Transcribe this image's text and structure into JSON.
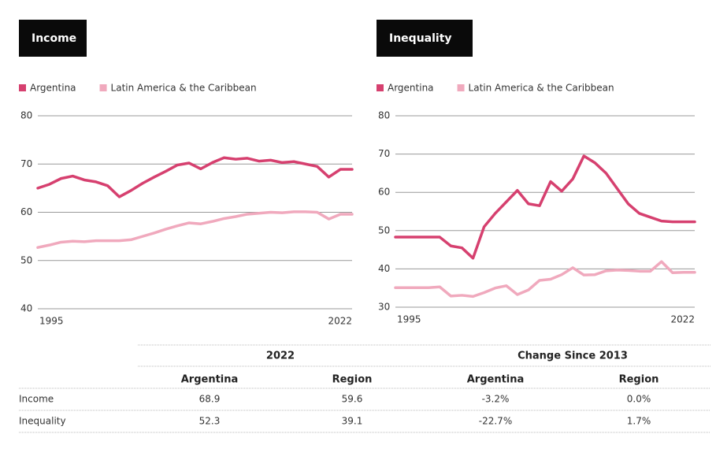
{
  "chart_data": [
    {
      "type": "line",
      "title": "Income",
      "x": [
        1995,
        1996,
        1997,
        1998,
        1999,
        2000,
        2001,
        2002,
        2003,
        2004,
        2005,
        2006,
        2007,
        2008,
        2009,
        2010,
        2011,
        2012,
        2013,
        2014,
        2015,
        2016,
        2017,
        2018,
        2019,
        2020,
        2021,
        2022
      ],
      "xlim": [
        1995,
        2022
      ],
      "xticks": [
        1995,
        2022
      ],
      "ylim": [
        40,
        80
      ],
      "yticks": [
        40,
        50,
        60,
        70,
        80
      ],
      "grid": true,
      "legend": "top-left",
      "series": [
        {
          "name": "Argentina",
          "color": "#d6406f",
          "values": [
            65,
            65.8,
            67,
            67.5,
            66.7,
            66.3,
            65.5,
            63.2,
            64.5,
            66,
            67.3,
            68.5,
            69.8,
            70.2,
            69,
            70.3,
            71.3,
            71,
            71.2,
            70.6,
            70.8,
            70.3,
            70.5,
            70,
            69.5,
            67.3,
            68.9,
            68.9
          ]
        },
        {
          "name": "Latin America & the Caribbean",
          "color": "#f0a9bd",
          "values": [
            52.7,
            53.2,
            53.8,
            54,
            53.9,
            54.1,
            54.1,
            54.1,
            54.3,
            55,
            55.7,
            56.5,
            57.2,
            57.8,
            57.6,
            58.1,
            58.7,
            59.1,
            59.6,
            59.8,
            60,
            59.9,
            60.1,
            60.1,
            60,
            58.6,
            59.6,
            59.6
          ]
        }
      ]
    },
    {
      "type": "line",
      "title": "Inequality",
      "x": [
        1995,
        1996,
        1997,
        1998,
        1999,
        2000,
        2001,
        2002,
        2003,
        2004,
        2005,
        2006,
        2007,
        2008,
        2009,
        2010,
        2011,
        2012,
        2013,
        2014,
        2015,
        2016,
        2017,
        2018,
        2019,
        2020,
        2021,
        2022
      ],
      "xlim": [
        1995,
        2022
      ],
      "xticks": [
        1995,
        2022
      ],
      "ylim": [
        30,
        80
      ],
      "yticks": [
        30,
        40,
        50,
        60,
        70,
        80
      ],
      "grid": true,
      "legend": "top-left",
      "series": [
        {
          "name": "Argentina",
          "color": "#d6406f",
          "values": [
            48.3,
            48.3,
            48.3,
            48.3,
            48.3,
            46,
            45.5,
            42.8,
            51,
            54.5,
            57.5,
            60.5,
            57,
            56.5,
            62.8,
            60.3,
            63.5,
            69.5,
            67.7,
            65,
            61,
            57,
            54.5,
            53.5,
            52.5,
            52.3,
            52.3,
            52.3
          ]
        },
        {
          "name": "Latin America & the Caribbean",
          "color": "#f0a9bd",
          "values": [
            35.1,
            35.1,
            35.1,
            35.1,
            35.3,
            32.9,
            33.1,
            32.8,
            33.8,
            35,
            35.6,
            33.3,
            34.5,
            37,
            37.3,
            38.5,
            40.3,
            38.4,
            38.5,
            39.5,
            39.7,
            39.6,
            39.4,
            39.4,
            41.9,
            39,
            39.1,
            39.1
          ]
        }
      ]
    }
  ],
  "table": {
    "groups": [
      "2022",
      "Change Since 2013"
    ],
    "columns": [
      "Argentina",
      "Region",
      "Argentina",
      "Region"
    ],
    "rows": [
      [
        "Income",
        "68.9",
        "59.6",
        "-3.2%",
        "0.0%"
      ],
      [
        "Inequality",
        "52.3",
        "39.1",
        "-22.7%",
        "1.7%"
      ]
    ]
  }
}
